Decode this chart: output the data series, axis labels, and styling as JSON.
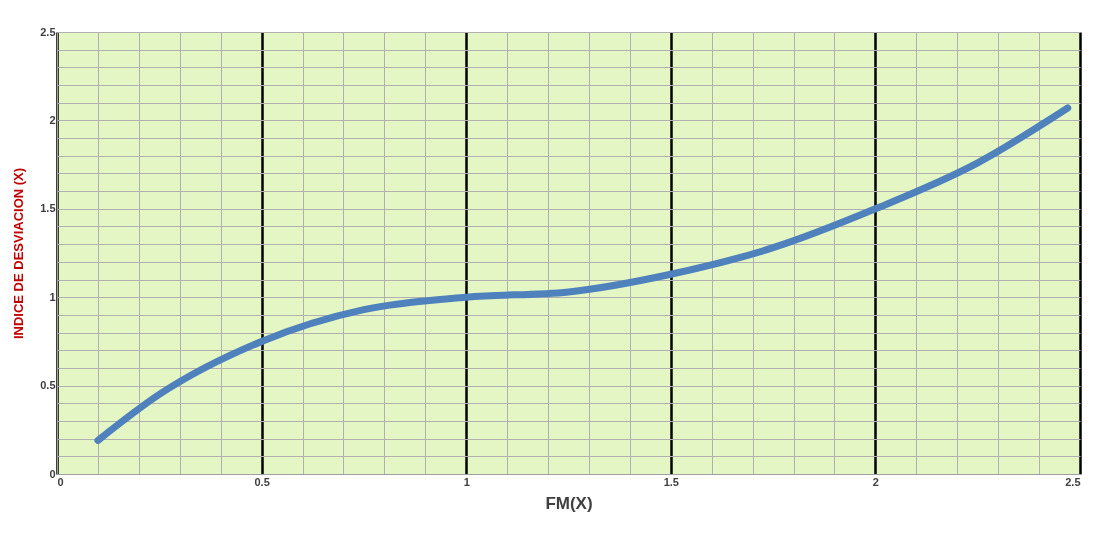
{
  "chart_data": {
    "type": "line",
    "xlabel": "FM(X)",
    "ylabel": "INDICE DE DESVIACION (X)",
    "x": [
      0.1,
      0.25,
      0.5,
      0.75,
      1.0,
      1.25,
      1.5,
      1.75,
      2.0,
      2.25,
      2.47
    ],
    "series": [
      {
        "color": "#4f81bd",
        "values": [
          0.19,
          0.45,
          0.75,
          0.93,
          1.0,
          1.03,
          1.13,
          1.28,
          1.5,
          1.76,
          2.07
        ]
      }
    ],
    "xlim": [
      0,
      2.5
    ],
    "ylim": [
      0,
      2.5
    ],
    "xticks": [
      0,
      {
        "value": 0.1,
        "label": null
      },
      {
        "value": 0.2,
        "label": null
      },
      {
        "value": 0.3,
        "label": null
      },
      {
        "value": 0.4,
        "label": null
      },
      0.5,
      {
        "value": 0.6,
        "label": null
      },
      {
        "value": 0.7,
        "label": null
      },
      {
        "value": 0.8,
        "label": null
      },
      {
        "value": 0.9,
        "label": null
      },
      1,
      {
        "value": 1.1,
        "label": null
      },
      {
        "value": 1.2,
        "label": null
      },
      {
        "value": 1.3,
        "label": null
      },
      {
        "value": 1.4,
        "label": null
      },
      1.5,
      {
        "value": 1.6,
        "label": null
      },
      {
        "value": 1.7,
        "label": null
      },
      {
        "value": 1.8,
        "label": null
      },
      {
        "value": 1.9,
        "label": null
      },
      2,
      {
        "value": 2.1,
        "label": null
      },
      {
        "value": 2.2,
        "label": null
      },
      {
        "value": 2.3,
        "label": null
      },
      {
        "value": 2.4,
        "label": null
      },
      2.5
    ],
    "yticks": [
      0,
      {
        "value": 0.1,
        "label": null
      },
      {
        "value": 0.2,
        "label": null
      },
      {
        "value": 0.3,
        "label": null
      },
      {
        "value": 0.4,
        "label": null
      },
      0.5,
      {
        "value": 0.6,
        "label": null
      },
      {
        "value": 0.7,
        "label": null
      },
      {
        "value": 0.8,
        "label": null
      },
      {
        "value": 0.9,
        "label": null
      },
      1,
      {
        "value": 1.1,
        "label": null
      },
      {
        "value": 1.2,
        "label": null
      },
      {
        "value": 1.3,
        "label": null
      },
      {
        "value": 1.4,
        "label": null
      },
      1.5,
      {
        "value": 1.6,
        "label": null
      },
      {
        "value": 1.7,
        "label": null
      },
      {
        "value": 1.8,
        "label": null
      },
      {
        "value": 1.9,
        "label": null
      },
      2,
      {
        "value": 2.1,
        "label": null
      },
      {
        "value": 2.2,
        "label": null
      },
      {
        "value": 2.3,
        "label": null
      },
      {
        "value": 2.4,
        "label": null
      },
      2.5
    ],
    "grid": true,
    "marker": "none",
    "line_style": "solid"
  }
}
